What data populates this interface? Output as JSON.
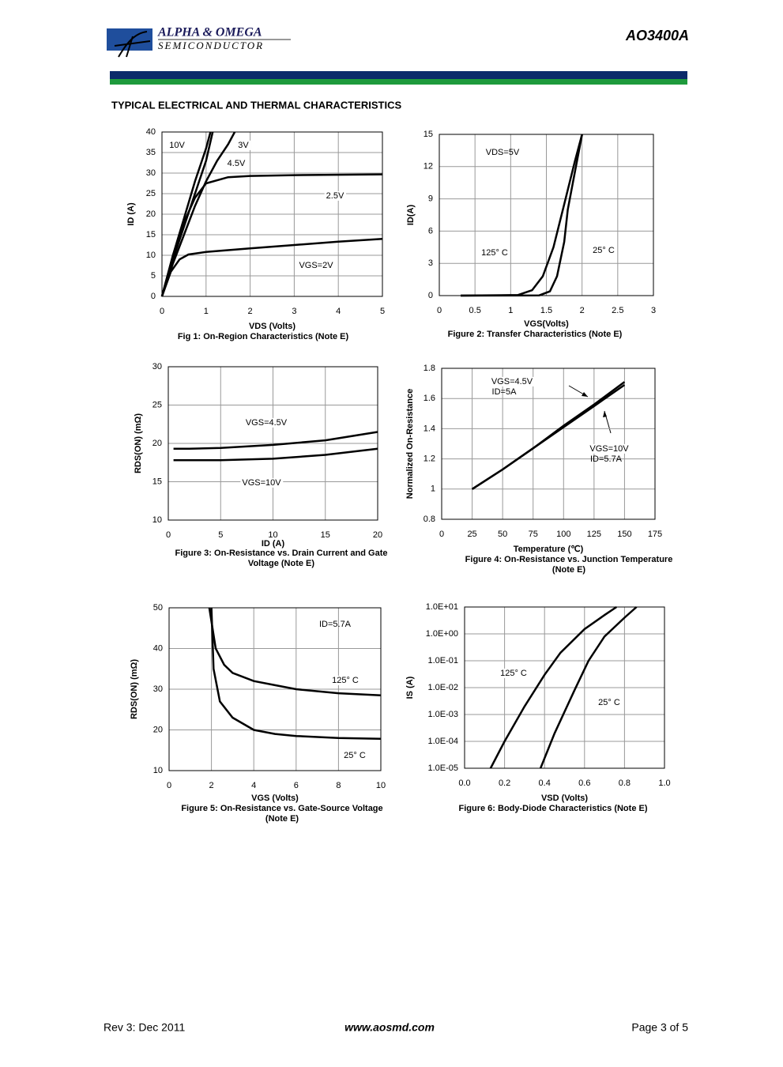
{
  "header": {
    "logo_line1": "ALPHA & OMEGA",
    "logo_line2": "SEMICONDUCTOR",
    "part": "AO3400A",
    "section_title": "TYPICAL ELECTRICAL AND THERMAL CHARACTERISTICS"
  },
  "footer": {
    "rev": "Rev 3: Dec 2011",
    "url": "www.aosmd.com",
    "page": "Page 3 of 5"
  },
  "chart_data": [
    {
      "type": "line",
      "xlabel": "VDS (Volts)",
      "ylabel": "ID (A)",
      "caption": [
        "Fig 1: On-Region Characteristics (Note E)"
      ],
      "xlim": [
        0,
        5
      ],
      "ylim": [
        0,
        40
      ],
      "xticks": [
        0,
        1,
        2,
        3,
        4,
        5
      ],
      "yticks": [
        0,
        5,
        10,
        15,
        20,
        25,
        30,
        35,
        40
      ],
      "grid": true,
      "series": [
        {
          "name": "10V",
          "color": "#000000",
          "x": [
            0,
            0.25,
            0.5,
            0.75,
            1,
            1.1
          ],
          "values": [
            0,
            10,
            19,
            28,
            36,
            40
          ]
        },
        {
          "name": "4.5V",
          "color": "#000000",
          "x": [
            0,
            0.25,
            0.5,
            0.75,
            1,
            1.15
          ],
          "values": [
            0,
            9,
            17,
            25,
            33,
            40
          ]
        },
        {
          "name": "3V",
          "color": "#000000",
          "x": [
            0,
            0.25,
            0.5,
            0.75,
            1,
            1.25,
            1.5,
            1.65
          ],
          "values": [
            0,
            8,
            15,
            22,
            28,
            33,
            37,
            40
          ]
        },
        {
          "name": "2.5V",
          "color": "#000000",
          "x": [
            0,
            0.25,
            0.5,
            0.75,
            1,
            1.5,
            2,
            3,
            5
          ],
          "values": [
            0,
            10,
            18,
            24,
            27.5,
            29,
            29.3,
            29.5,
            29.7
          ]
        },
        {
          "name": "VGS=2V",
          "color": "#000000",
          "x": [
            0,
            0.2,
            0.4,
            0.6,
            1,
            2,
            3,
            4,
            5
          ],
          "values": [
            0,
            6,
            9,
            10.2,
            10.8,
            11.7,
            12.5,
            13.3,
            14
          ]
        }
      ]
    },
    {
      "type": "line",
      "xlabel": "VGS(Volts)",
      "ylabel": "ID(A)",
      "caption": [
        "Figure 2: Transfer Characteristics (Note E)"
      ],
      "annotations": [
        "VDS=5V"
      ],
      "xlim": [
        0,
        3
      ],
      "ylim": [
        0,
        15
      ],
      "xticks": [
        0,
        0.5,
        1,
        1.5,
        2,
        2.5,
        3
      ],
      "yticks": [
        0,
        3,
        6,
        9,
        12,
        15
      ],
      "grid": true,
      "series": [
        {
          "name": "125° C",
          "color": "#000000",
          "x": [
            0.3,
            1.1,
            1.3,
            1.45,
            1.6,
            1.75,
            1.9,
            2.0
          ],
          "values": [
            0,
            0.05,
            0.5,
            1.8,
            4.5,
            8.5,
            12.5,
            15
          ]
        },
        {
          "name": "25° C",
          "color": "#000000",
          "x": [
            0.3,
            1.4,
            1.55,
            1.65,
            1.75,
            1.8,
            1.9,
            2.0
          ],
          "values": [
            0,
            0.02,
            0.4,
            1.8,
            5,
            8,
            11.5,
            15
          ]
        }
      ]
    },
    {
      "type": "line",
      "xlabel": "ID (A)",
      "ylabel": "RDS(ON) (mΩ)",
      "caption": [
        "Figure 3: On-Resistance vs. Drain Current and Gate",
        "Voltage (Note E)"
      ],
      "xlim": [
        0,
        20
      ],
      "ylim": [
        10,
        30
      ],
      "xticks": [
        0,
        5,
        10,
        15,
        20
      ],
      "yticks": [
        10,
        15,
        20,
        25,
        30
      ],
      "grid": true,
      "series": [
        {
          "name": "VGS=4.5V",
          "color": "#000000",
          "x": [
            0.5,
            2,
            5,
            10,
            15,
            20
          ],
          "values": [
            19.3,
            19.3,
            19.4,
            19.8,
            20.4,
            21.5
          ]
        },
        {
          "name": "VGS=10V",
          "color": "#000000",
          "x": [
            0.5,
            5,
            10,
            15,
            20
          ],
          "values": [
            17.8,
            17.8,
            18,
            18.5,
            19.3
          ]
        }
      ]
    },
    {
      "type": "line",
      "xlabel": "Temperature (℃)",
      "ylabel": "Normalized On-Resistance",
      "caption": [
        "Figure 4: On-Resistance vs. Junction Temperature",
        "(Note E)"
      ],
      "annotations": [
        "ID=5A",
        "ID=5.7A"
      ],
      "xlim": [
        0,
        175
      ],
      "ylim": [
        0.8,
        1.8
      ],
      "xticks": [
        0,
        25,
        50,
        75,
        100,
        125,
        150,
        175
      ],
      "yticks": [
        0.8,
        1,
        1.2,
        1.4,
        1.6,
        1.8
      ],
      "grid": true,
      "series": [
        {
          "name": "VGS=4.5V",
          "color": "#000000",
          "x": [
            25,
            50,
            75,
            100,
            125,
            150
          ],
          "values": [
            1,
            1.13,
            1.27,
            1.42,
            1.56,
            1.71
          ]
        },
        {
          "name": "VGS=10V",
          "color": "#000000",
          "x": [
            25,
            50,
            75,
            100,
            125,
            150
          ],
          "values": [
            1,
            1.13,
            1.27,
            1.41,
            1.55,
            1.69
          ]
        }
      ]
    },
    {
      "type": "line",
      "xlabel": "VGS (Volts)",
      "ylabel": "RDS(ON) (mΩ)",
      "caption": [
        "Figure 5: On-Resistance vs. Gate-Source Voltage",
        "(Note E)"
      ],
      "annotations": [
        "ID=5.7A"
      ],
      "xlim": [
        0,
        10
      ],
      "ylim": [
        10,
        50
      ],
      "xticks": [
        0,
        2,
        4,
        6,
        8,
        10
      ],
      "yticks": [
        10,
        20,
        30,
        40,
        50
      ],
      "grid": true,
      "series": [
        {
          "name": "125° C",
          "color": "#000000",
          "x": [
            1.9,
            2.2,
            2.6,
            3,
            4,
            5,
            6,
            8,
            10
          ],
          "values": [
            50,
            40,
            36,
            34,
            32,
            31,
            30,
            29,
            28.5
          ]
        },
        {
          "name": "25° C",
          "color": "#000000",
          "x": [
            2,
            2.1,
            2.4,
            3,
            4,
            5,
            6,
            8,
            10
          ],
          "values": [
            50,
            35,
            27,
            23,
            20,
            19,
            18.5,
            18,
            17.8
          ]
        }
      ]
    },
    {
      "type": "line",
      "xlabel": "VSD (Volts)",
      "ylabel": "IS (A)",
      "caption": [
        "Figure 6: Body-Diode Characteristics (Note E)"
      ],
      "ylog": true,
      "xlim": [
        0,
        1
      ],
      "ylim": [
        1e-05,
        10
      ],
      "xticks": [
        {
          "value": 0,
          "label": "0.0"
        },
        0.2,
        0.4,
        0.6,
        0.8,
        {
          "value": 1,
          "label": "1.0"
        }
      ],
      "yticks": [
        {
          "value": 10,
          "label": "1.0E+01"
        },
        {
          "value": 1,
          "label": "1.0E+00"
        },
        {
          "value": 0.1,
          "label": "1.0E-01"
        },
        {
          "value": 0.01,
          "label": "1.0E-02"
        },
        {
          "value": 0.001,
          "label": "1.0E-03"
        },
        {
          "value": 0.0001,
          "label": "1.0E-04"
        },
        {
          "value": 1e-05,
          "label": "1.0E-05"
        }
      ],
      "grid": true,
      "series": [
        {
          "name": "125° C",
          "color": "#000000",
          "x": [
            0.13,
            0.2,
            0.3,
            0.4,
            0.48,
            0.6,
            0.7,
            0.76
          ],
          "values": [
            1e-05,
            0.0001,
            0.002,
            0.03,
            0.2,
            1.5,
            5,
            10
          ]
        },
        {
          "name": "25° C",
          "color": "#000000",
          "x": [
            0.38,
            0.45,
            0.55,
            0.62,
            0.7,
            0.8,
            0.86
          ],
          "values": [
            1e-05,
            0.0002,
            0.008,
            0.1,
            0.8,
            4,
            10
          ]
        }
      ]
    }
  ]
}
